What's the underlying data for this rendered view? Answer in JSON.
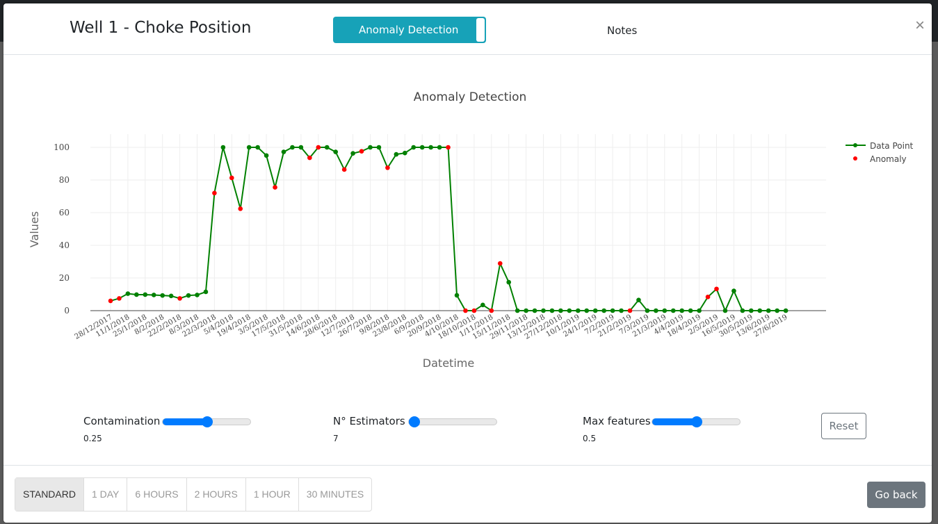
{
  "modal": {
    "title": "Well 1 - Choke Position",
    "tabs": [
      {
        "label": "Anomaly Detection",
        "active": true
      },
      {
        "label": "Notes",
        "active": false
      }
    ],
    "close_icon": "×"
  },
  "controls": {
    "contamination": {
      "label": "Contamination",
      "value": "0.25",
      "fill_fraction": 0.5
    },
    "estimators": {
      "label": "N° Estimators",
      "value": "7",
      "fill_fraction": 0.0
    },
    "max_features": {
      "label": "Max features",
      "value": "0.5",
      "fill_fraction": 0.5
    },
    "reset_label": "Reset"
  },
  "footer": {
    "ranges": [
      "STANDARD",
      "1 DAY",
      "6 HOURS",
      "2 HOURS",
      "1 HOUR",
      "30 MINUTES"
    ],
    "selected": "STANDARD",
    "go_back_label": "Go back"
  },
  "colors": {
    "line": "#008000",
    "anomaly": "#ff0000",
    "accent": "#17a2b8",
    "slider": "#007bff"
  },
  "chart_data": {
    "type": "line",
    "title": "Anomaly Detection",
    "xlabel": "Datetime",
    "ylabel": "Values",
    "ylim": [
      0,
      100
    ],
    "yticks": [
      0,
      20,
      40,
      60,
      80,
      100
    ],
    "grid": true,
    "legend_position": "top-right",
    "xtick_labels": [
      "28/12/2017",
      "11/1/2018",
      "25/1/2018",
      "8/2/2018",
      "22/2/2018",
      "8/3/2018",
      "22/3/2018",
      "5/4/2018",
      "19/4/2018",
      "3/5/2018",
      "17/5/2018",
      "31/5/2018",
      "14/6/2018",
      "28/6/2018",
      "12/7/2018",
      "26/7/2018",
      "9/8/2018",
      "23/8/2018",
      "6/9/2018",
      "20/9/2018",
      "4/10/2018",
      "18/10/2018",
      "1/11/2018",
      "15/11/2018",
      "29/11/2018",
      "13/12/2018",
      "27/12/2018",
      "10/1/2019",
      "24/1/2019",
      "7/2/2019",
      "21/2/2019",
      "7/3/2019",
      "21/3/2019",
      "4/4/2019",
      "18/4/2019",
      "2/5/2019",
      "16/5/2019",
      "30/5/2019",
      "13/6/2019",
      "27/6/2019"
    ],
    "series": [
      {
        "name": "Data Point",
        "x": [
          "28/12/2017",
          "4/1/2018",
          "11/1/2018",
          "18/1/2018",
          "25/1/2018",
          "1/2/2018",
          "8/2/2018",
          "15/2/2018",
          "22/2/2018",
          "1/3/2018",
          "8/3/2018",
          "15/3/2018",
          "22/3/2018",
          "29/3/2018",
          "5/4/2018",
          "12/4/2018",
          "19/4/2018",
          "26/4/2018",
          "3/5/2018",
          "10/5/2018",
          "17/5/2018",
          "24/5/2018",
          "31/5/2018",
          "7/6/2018",
          "14/6/2018",
          "21/6/2018",
          "28/6/2018",
          "5/7/2018",
          "12/7/2018",
          "19/7/2018",
          "26/7/2018",
          "2/8/2018",
          "9/8/2018",
          "16/8/2018",
          "23/8/2018",
          "30/8/2018",
          "6/9/2018",
          "13/9/2018",
          "20/9/2018",
          "27/9/2018",
          "4/10/2018",
          "11/10/2018",
          "18/10/2018",
          "25/10/2018",
          "1/11/2018",
          "8/11/2018",
          "15/11/2018",
          "22/11/2018",
          "29/11/2018",
          "6/12/2018",
          "13/12/2018",
          "20/12/2018",
          "27/12/2018",
          "3/1/2019",
          "10/1/2019",
          "17/1/2019",
          "24/1/2019",
          "31/1/2019",
          "7/2/2019",
          "14/2/2019",
          "21/2/2019",
          "28/2/2019",
          "7/3/2019",
          "14/3/2019",
          "21/3/2019",
          "28/3/2019",
          "4/4/2019",
          "11/4/2019",
          "18/4/2019",
          "25/4/2019",
          "2/5/2019",
          "9/5/2019",
          "16/5/2019",
          "23/5/2019",
          "30/5/2019",
          "6/6/2019",
          "13/6/2019",
          "20/6/2019",
          "27/6/2019"
        ],
        "y": [
          6,
          7.5,
          10.4,
          9.8,
          9.8,
          9.6,
          9.3,
          9.0,
          7.5,
          9.3,
          9.6,
          11.5,
          72,
          100,
          81.3,
          62.4,
          100,
          100,
          95,
          75.5,
          97.2,
          100,
          100,
          93.6,
          100,
          100,
          97.2,
          86.4,
          96.3,
          97.6,
          100,
          100,
          87.5,
          95.7,
          96.5,
          100,
          100,
          100,
          100,
          100,
          9.4,
          0,
          0,
          3.5,
          0,
          28.9,
          17.4,
          0,
          0,
          0,
          0,
          0,
          0,
          0,
          0,
          0,
          0,
          0,
          0,
          0,
          0,
          6.5,
          0,
          0,
          0,
          0,
          0,
          0,
          0,
          8.4,
          13.3,
          0,
          12.1,
          0,
          0,
          0,
          0,
          0,
          0
        ]
      },
      {
        "name": "Anomaly",
        "anomaly_x": [
          "28/12/2017",
          "4/1/2018",
          "22/2/2018",
          "22/3/2018",
          "5/4/2018",
          "12/4/2018",
          "10/5/2018",
          "7/6/2018",
          "14/6/2018",
          "5/7/2018",
          "19/7/2018",
          "9/8/2018",
          "27/9/2018",
          "11/10/2018",
          "18/10/2018",
          "1/11/2018",
          "8/11/2018",
          "21/2/2019",
          "25/4/2019",
          "2/5/2019"
        ]
      }
    ]
  }
}
